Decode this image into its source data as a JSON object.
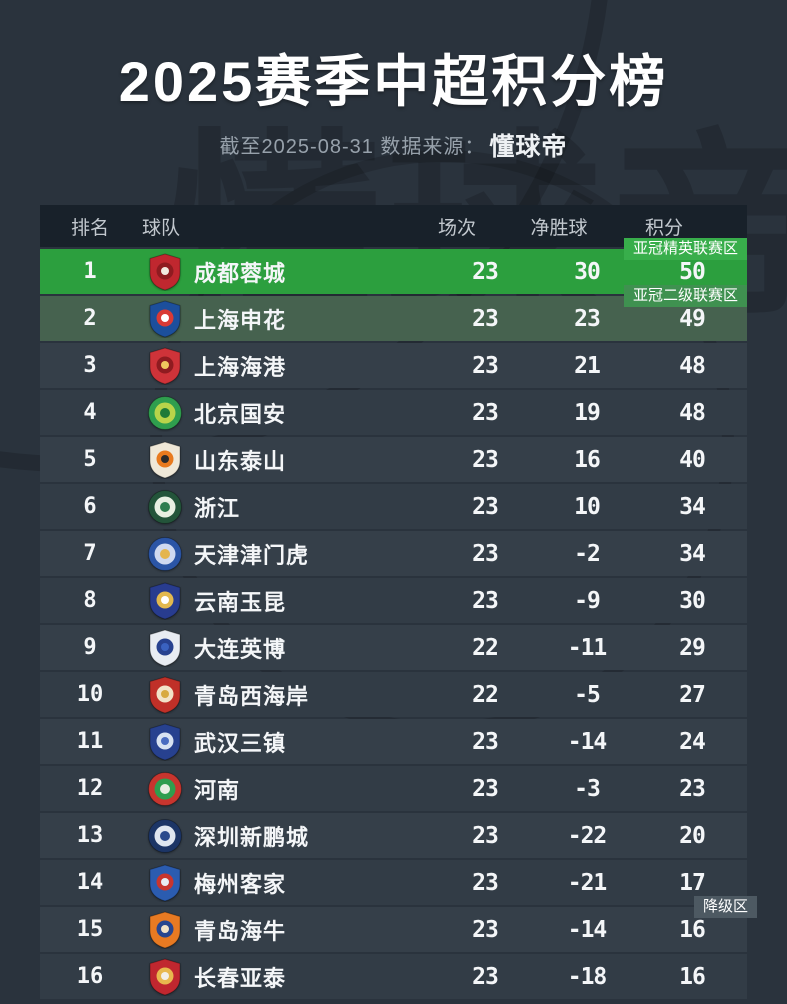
{
  "page": {
    "title": "2025赛季中超积分榜",
    "subtitle_prefix": "截至2025-08-31 数据来源：",
    "source_name": "懂球帝",
    "watermark_text": "懂球帝",
    "colors": {
      "page_bg": "#2a333d",
      "table_header_bg": "#18212a",
      "row_dark_a": "#353f49",
      "row_dark_b": "#323c46",
      "acl_elite_row": "#2c9f3e",
      "acl_elite_badge": "#38ae4b",
      "acl_two_row": "#46624f",
      "acl_two_badge": "#3f9150",
      "relegation_badge": "#4d5962"
    }
  },
  "table": {
    "columns": [
      "排名",
      "球队",
      "场次",
      "净胜球",
      "积分"
    ],
    "rows": [
      {
        "rank": "1",
        "team": "成都蓉城",
        "played": "23",
        "gd": "30",
        "points": "50",
        "row_color": "#2c9f3e",
        "badge": {
          "label": "亚冠精英联赛区",
          "bg": "#38ae4b"
        },
        "logo": {
          "shape": "shield",
          "colors": [
            "#c0272f",
            "#8f1b20",
            "#f2e9df"
          ]
        }
      },
      {
        "rank": "2",
        "team": "上海申花",
        "played": "23",
        "gd": "23",
        "points": "49",
        "row_color": "#46624f",
        "badge": {
          "label": "亚冠二级联赛区",
          "bg": "#3f9150"
        },
        "logo": {
          "shape": "shield",
          "colors": [
            "#1c4f9c",
            "#d93a35",
            "#ffffff"
          ]
        }
      },
      {
        "rank": "3",
        "team": "上海海港",
        "played": "23",
        "gd": "21",
        "points": "48",
        "logo": {
          "shape": "shield",
          "colors": [
            "#cf3339",
            "#8f1b20",
            "#f0c75e"
          ]
        }
      },
      {
        "rank": "4",
        "team": "北京国安",
        "played": "23",
        "gd": "19",
        "points": "48",
        "logo": {
          "shape": "circle",
          "colors": [
            "#2f9e4e",
            "#b9d44a",
            "#1e7a38"
          ]
        }
      },
      {
        "rank": "5",
        "team": "山东泰山",
        "played": "23",
        "gd": "16",
        "points": "40",
        "logo": {
          "shape": "shield",
          "colors": [
            "#efe8d8",
            "#e87a1e",
            "#2b2b2b"
          ]
        }
      },
      {
        "rank": "6",
        "team": "浙江",
        "played": "23",
        "gd": "10",
        "points": "34",
        "logo": {
          "shape": "circle",
          "colors": [
            "#23543a",
            "#e8efe2",
            "#2e7d4f"
          ]
        }
      },
      {
        "rank": "7",
        "team": "天津津门虎",
        "played": "23",
        "gd": "-2",
        "points": "34",
        "logo": {
          "shape": "circle",
          "colors": [
            "#2b55a6",
            "#cfd9f0",
            "#e4b54d"
          ]
        }
      },
      {
        "rank": "8",
        "team": "云南玉昆",
        "played": "23",
        "gd": "-9",
        "points": "30",
        "logo": {
          "shape": "shield",
          "colors": [
            "#283c8f",
            "#e2b84e",
            "#ffffff"
          ]
        }
      },
      {
        "rank": "9",
        "team": "大连英博",
        "played": "22",
        "gd": "-11",
        "points": "29",
        "logo": {
          "shape": "shield",
          "colors": [
            "#e8ecf2",
            "#27418f",
            "#3a62c0"
          ]
        }
      },
      {
        "rank": "10",
        "team": "青岛西海岸",
        "played": "22",
        "gd": "-5",
        "points": "27",
        "logo": {
          "shape": "shield",
          "colors": [
            "#c03028",
            "#f2e3c8",
            "#d8a93f"
          ]
        }
      },
      {
        "rank": "11",
        "team": "武汉三镇",
        "played": "23",
        "gd": "-14",
        "points": "24",
        "logo": {
          "shape": "shield",
          "colors": [
            "#27418f",
            "#d8e2f2",
            "#4a6cc0"
          ]
        }
      },
      {
        "rank": "12",
        "team": "河南",
        "played": "23",
        "gd": "-3",
        "points": "23",
        "logo": {
          "shape": "circle",
          "colors": [
            "#c8352e",
            "#2f9e4e",
            "#e8efe2"
          ]
        }
      },
      {
        "rank": "13",
        "team": "深圳新鹏城",
        "played": "23",
        "gd": "-22",
        "points": "20",
        "logo": {
          "shape": "circle",
          "colors": [
            "#1c3566",
            "#dfe6f0",
            "#2a4a8c"
          ]
        }
      },
      {
        "rank": "14",
        "team": "梅州客家",
        "played": "23",
        "gd": "-21",
        "points": "17",
        "logo": {
          "shape": "shield",
          "colors": [
            "#2b5cb0",
            "#c8352e",
            "#e8ecf2"
          ]
        }
      },
      {
        "rank": "15",
        "team": "青岛海牛",
        "played": "23",
        "gd": "-14",
        "points": "16",
        "badge": {
          "label": "降级区",
          "bg": "#4d5962"
        },
        "logo": {
          "shape": "shield",
          "colors": [
            "#e87a22",
            "#28468f",
            "#f2e3c8"
          ]
        }
      },
      {
        "rank": "16",
        "team": "长春亚泰",
        "played": "23",
        "gd": "-18",
        "points": "16",
        "logo": {
          "shape": "shield",
          "colors": [
            "#c0272f",
            "#e8b84e",
            "#f2efe8"
          ]
        }
      }
    ]
  },
  "chart_data": {
    "type": "table",
    "title": "2025赛季中超积分榜",
    "subtitle": "截至2025-08-31 数据来源：懂球帝",
    "columns": [
      "排名",
      "球队",
      "场次",
      "净胜球",
      "积分",
      "区域"
    ],
    "rows": [
      [
        1,
        "成都蓉城",
        23,
        30,
        50,
        "亚冠精英联赛区"
      ],
      [
        2,
        "上海申花",
        23,
        23,
        49,
        "亚冠二级联赛区"
      ],
      [
        3,
        "上海海港",
        23,
        21,
        48,
        ""
      ],
      [
        4,
        "北京国安",
        23,
        19,
        48,
        ""
      ],
      [
        5,
        "山东泰山",
        23,
        16,
        40,
        ""
      ],
      [
        6,
        "浙江",
        23,
        10,
        34,
        ""
      ],
      [
        7,
        "天津津门虎",
        23,
        -2,
        34,
        ""
      ],
      [
        8,
        "云南玉昆",
        23,
        -9,
        30,
        ""
      ],
      [
        9,
        "大连英博",
        22,
        -11,
        29,
        ""
      ],
      [
        10,
        "青岛西海岸",
        22,
        -5,
        27,
        ""
      ],
      [
        11,
        "武汉三镇",
        23,
        -14,
        24,
        ""
      ],
      [
        12,
        "河南",
        23,
        -3,
        23,
        ""
      ],
      [
        13,
        "深圳新鹏城",
        23,
        -22,
        20,
        ""
      ],
      [
        14,
        "梅州客家",
        23,
        -21,
        17,
        "降级区"
      ],
      [
        15,
        "青岛海牛",
        23,
        -14,
        16,
        "降级区"
      ],
      [
        16,
        "长春亚泰",
        23,
        -18,
        16,
        "降级区"
      ]
    ]
  }
}
